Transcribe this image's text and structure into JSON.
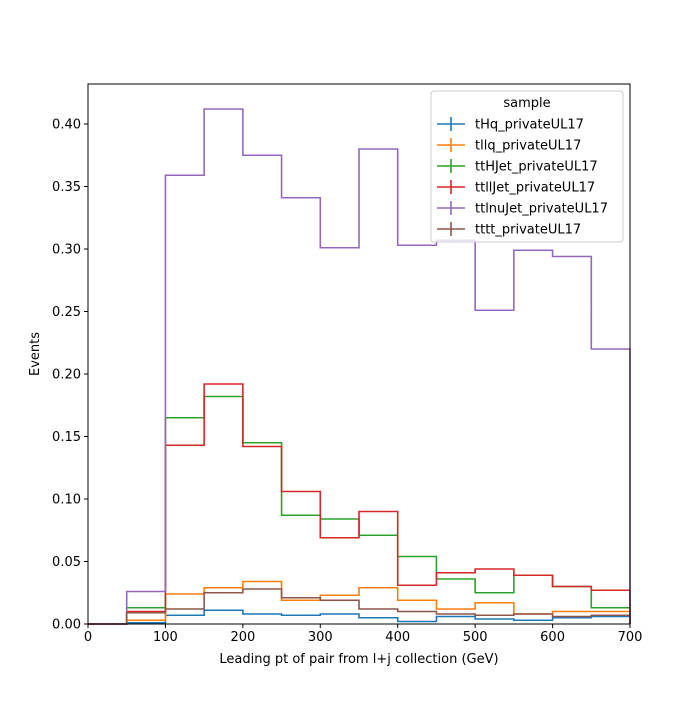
{
  "chart_data": {
    "type": "step",
    "title": "",
    "xlabel": "Leading pt of pair from l+j collection (GeV)",
    "ylabel": "Events",
    "xlim": [
      0,
      700
    ],
    "ylim": [
      0,
      0.432
    ],
    "xticks": [
      0,
      100,
      200,
      300,
      400,
      500,
      600,
      700
    ],
    "yticks": [
      0.0,
      0.05,
      0.1,
      0.15,
      0.2,
      0.25,
      0.3,
      0.35,
      0.4
    ],
    "ytick_labels": [
      "0.00",
      "0.05",
      "0.10",
      "0.15",
      "0.20",
      "0.25",
      "0.30",
      "0.35",
      "0.40"
    ],
    "grid": false,
    "legend": {
      "title": "sample",
      "placement": "top-right"
    },
    "bin_edges": [
      0,
      50,
      100,
      150,
      200,
      250,
      300,
      350,
      400,
      450,
      500,
      550,
      600,
      650,
      700
    ],
    "series": [
      {
        "name": "tHq_privateUL17",
        "color": "#1f77b4",
        "values": [
          0.0,
          0.001,
          0.007,
          0.011,
          0.008,
          0.007,
          0.008,
          0.005,
          0.002,
          0.006,
          0.004,
          0.003,
          0.005,
          0.006
        ]
      },
      {
        "name": "tllq_privateUL17",
        "color": "#ff7f0e",
        "values": [
          0.0,
          0.003,
          0.024,
          0.029,
          0.034,
          0.019,
          0.023,
          0.029,
          0.019,
          0.012,
          0.017,
          0.008,
          0.01,
          0.01
        ]
      },
      {
        "name": "ttHJet_privateUL17",
        "color": "#2ca02c",
        "values": [
          0.0,
          0.013,
          0.165,
          0.182,
          0.145,
          0.087,
          0.084,
          0.071,
          0.054,
          0.036,
          0.025,
          0.039,
          0.03,
          0.013
        ]
      },
      {
        "name": "ttllJet_privateUL17",
        "color": "#d62728",
        "values": [
          0.0,
          0.01,
          0.143,
          0.192,
          0.142,
          0.106,
          0.069,
          0.09,
          0.031,
          0.041,
          0.044,
          0.039,
          0.03,
          0.027
        ]
      },
      {
        "name": "ttlnuJet_privateUL17",
        "color": "#9467bd",
        "values": [
          0.0,
          0.026,
          0.359,
          0.412,
          0.375,
          0.341,
          0.301,
          0.38,
          0.303,
          0.307,
          0.251,
          0.299,
          0.294,
          0.22
        ]
      },
      {
        "name": "tttt_privateUL17",
        "color": "#8c564b",
        "values": [
          0.0,
          0.009,
          0.012,
          0.025,
          0.028,
          0.021,
          0.019,
          0.012,
          0.01,
          0.008,
          0.007,
          0.008,
          0.006,
          0.007
        ]
      }
    ]
  }
}
